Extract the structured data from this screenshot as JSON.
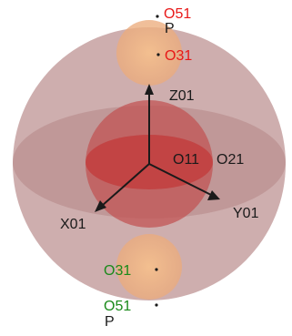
{
  "labels": {
    "top_point": "O51",
    "top_p": "P",
    "top_inner": "O31",
    "z_axis": "Z01",
    "x_axis": "X01",
    "y_axis": "Y01",
    "center_left": "O11",
    "center_right": "O21",
    "bottom_inner": "O31",
    "bottom_point": "O51",
    "bottom_p": "P"
  },
  "colors": {
    "outer_sphere": "#c49c9c",
    "equator_disc": "#b88a8a",
    "inner_sphere": "#c65a5a",
    "inner_core": "#c44040",
    "lobe": "#f0b98a",
    "red_label": "#e81818",
    "green_label": "#1a8a1a",
    "axis": "#1a1a1a"
  }
}
